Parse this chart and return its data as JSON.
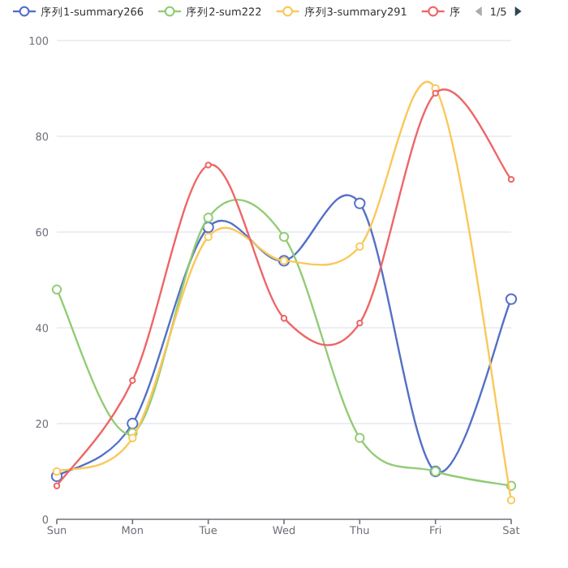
{
  "chart_data": {
    "type": "line",
    "categories": [
      "Sun",
      "Mon",
      "Tue",
      "Wed",
      "Thu",
      "Fri",
      "Sat"
    ],
    "series": [
      {
        "name": "序列1-summary266",
        "color": "#5470c6",
        "values": [
          9,
          20,
          61,
          54,
          66,
          10,
          46
        ]
      },
      {
        "name": "序列2-sum222",
        "color": "#91cc75",
        "values": [
          48,
          18,
          63,
          59,
          17,
          10,
          7
        ]
      },
      {
        "name": "序列3-summary291",
        "color": "#fac858",
        "values": [
          10,
          17,
          59,
          54,
          57,
          90,
          4
        ]
      },
      {
        "name": "序",
        "color": "#ee6666",
        "values": [
          7,
          29,
          74,
          42,
          41,
          89,
          71
        ]
      }
    ],
    "ylim": [
      0,
      100
    ],
    "yticks": [
      0,
      20,
      40,
      60,
      80,
      100
    ],
    "grid": "y",
    "legend": "top",
    "marker": "circle",
    "line_style": "solid",
    "annotations": [
      "1/5"
    ]
  }
}
